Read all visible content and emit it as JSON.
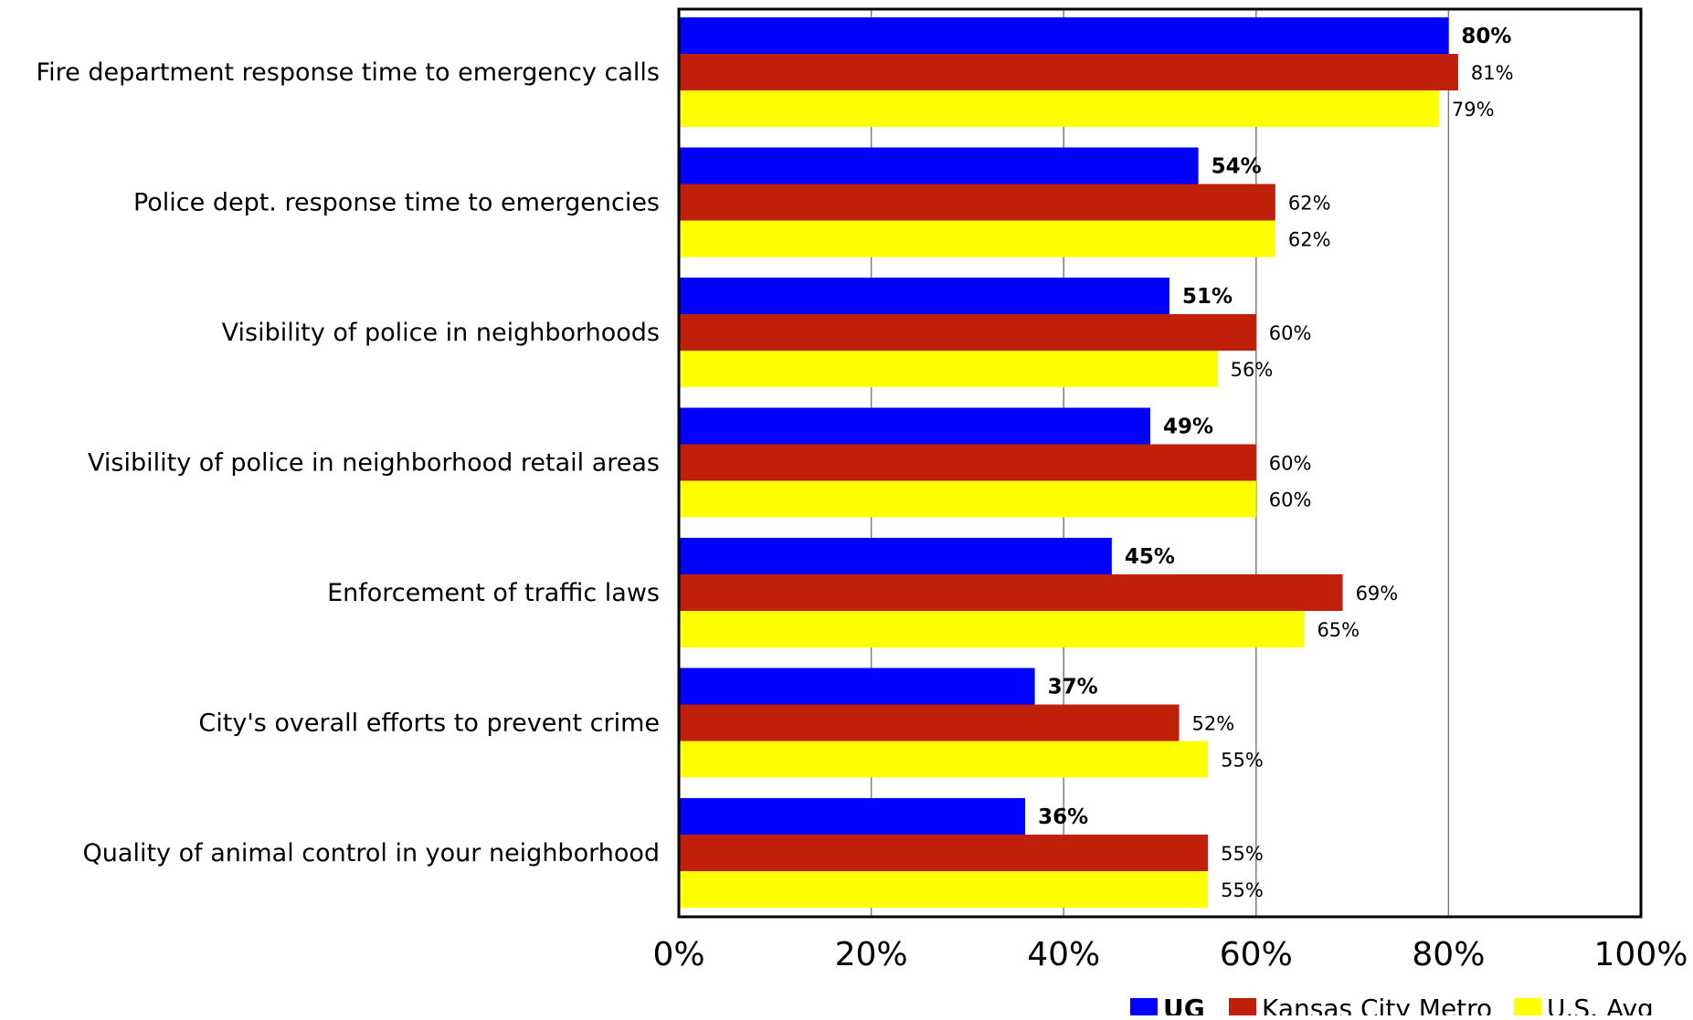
{
  "chart_data": {
    "type": "bar",
    "orientation": "horizontal",
    "categories": [
      "Fire department response time to emergency calls",
      "Police dept. response time to emergencies",
      "Visibility of police in neighborhoods",
      "Visibility of police in neighborhood retail areas",
      "Enforcement of traffic laws",
      "City's overall efforts to prevent crime",
      "Quality of animal control in your neighborhood"
    ],
    "series": [
      {
        "name": "UG",
        "color": "#0000ff",
        "bold": true,
        "values": [
          80,
          54,
          51,
          49,
          45,
          37,
          36
        ],
        "labels": [
          "80%",
          "54%",
          "51%",
          "49%",
          "45%",
          "37%",
          "36%"
        ]
      },
      {
        "name": "Kansas City Metro",
        "color": "#c0200a",
        "bold": false,
        "values": [
          81,
          62,
          60,
          60,
          69,
          52,
          55
        ],
        "labels": [
          "81%",
          "62%",
          "60%",
          "60%",
          "69%",
          "52%",
          "55%"
        ]
      },
      {
        "name": "U.S. Avg",
        "color": "#ffff00",
        "bold": false,
        "values": [
          79,
          62,
          56,
          60,
          65,
          55,
          55
        ],
        "labels": [
          "79%",
          "62%",
          "56%",
          "60%",
          "65%",
          "55%",
          "55%"
        ]
      }
    ],
    "xlim": [
      0,
      100
    ],
    "xticks": [
      0,
      20,
      40,
      60,
      80,
      100
    ],
    "xtick_labels": [
      "0%",
      "20%",
      "40%",
      "60%",
      "80%",
      "100%"
    ],
    "title": "",
    "xlabel": "",
    "ylabel": "",
    "grid": "vertical",
    "legend_position": "bottom-right"
  }
}
